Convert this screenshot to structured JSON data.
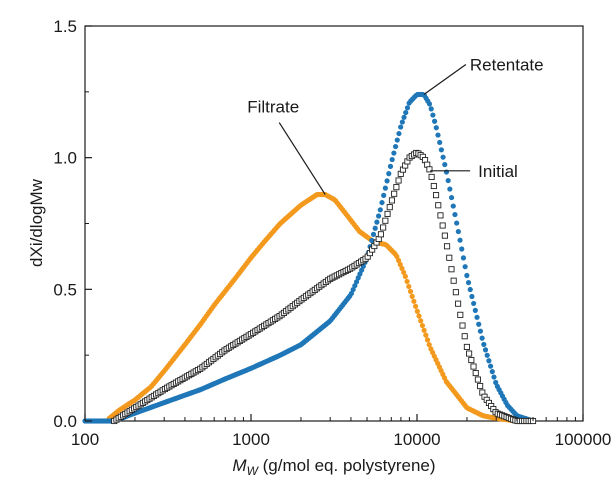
{
  "chart_data": {
    "type": "line",
    "title": "",
    "xlabel_main": "M",
    "xlabel_sub": "W",
    "xlabel_rest": " (g/mol eq. polystyrene)",
    "ylabel": "dXi/dlogMw",
    "xscale": "log",
    "xlim": [
      100,
      100000
    ],
    "ylim": [
      0,
      1.5
    ],
    "xticks": [
      100,
      1000,
      10000,
      100000
    ],
    "xtick_labels": [
      "100",
      "1000",
      "10000",
      "100000"
    ],
    "yticks": [
      0,
      0.5,
      1.0,
      1.5
    ],
    "ytick_labels": [
      "0.0",
      "0.5",
      "1.0",
      "1.5"
    ],
    "grid": false,
    "legend": "none",
    "series": [
      {
        "name": "Filtrate",
        "color": "#F39A1E",
        "marker": "filled-circle",
        "x": [
          140,
          160,
          200,
          250,
          300,
          400,
          500,
          600,
          800,
          1000,
          1200,
          1500,
          2000,
          2500,
          2800,
          3200,
          3800,
          4500,
          5500,
          6500,
          7500,
          8500,
          10000,
          12000,
          15000,
          20000,
          25000,
          30000,
          40000,
          50000
        ],
        "y": [
          0.01,
          0.04,
          0.08,
          0.13,
          0.19,
          0.29,
          0.37,
          0.44,
          0.54,
          0.62,
          0.68,
          0.75,
          0.82,
          0.86,
          0.86,
          0.84,
          0.78,
          0.72,
          0.68,
          0.67,
          0.63,
          0.55,
          0.42,
          0.28,
          0.15,
          0.05,
          0.02,
          0.01,
          0.0,
          0.0
        ]
      },
      {
        "name": "Retentate",
        "color": "#1F77B8",
        "marker": "filled-circle",
        "x": [
          100,
          150,
          200,
          300,
          500,
          700,
          1000,
          1500,
          2000,
          3000,
          4000,
          5000,
          6000,
          7000,
          8000,
          9000,
          10000,
          11000,
          12000,
          13000,
          15000,
          18000,
          20000,
          25000,
          30000,
          35000,
          40000,
          50000
        ],
        "y": [
          0.0,
          0.0,
          0.03,
          0.07,
          0.12,
          0.16,
          0.2,
          0.25,
          0.29,
          0.38,
          0.48,
          0.62,
          0.8,
          0.98,
          1.12,
          1.21,
          1.24,
          1.24,
          1.2,
          1.12,
          0.95,
          0.7,
          0.55,
          0.3,
          0.14,
          0.06,
          0.02,
          0.0
        ]
      },
      {
        "name": "Initial",
        "color": "#222222",
        "marker": "open-square",
        "x": [
          150,
          200,
          300,
          500,
          700,
          1000,
          1500,
          2000,
          3000,
          4000,
          5000,
          6000,
          7000,
          8000,
          9000,
          10000,
          11000,
          12000,
          13000,
          15000,
          18000,
          20000,
          25000,
          30000,
          40000,
          50000
        ],
        "y": [
          0.0,
          0.05,
          0.12,
          0.2,
          0.27,
          0.33,
          0.4,
          0.46,
          0.54,
          0.58,
          0.62,
          0.7,
          0.83,
          0.94,
          1.0,
          1.02,
          1.0,
          0.95,
          0.86,
          0.68,
          0.42,
          0.28,
          0.1,
          0.03,
          0.0,
          0.0
        ]
      }
    ],
    "annotations": [
      {
        "text": "Retentate",
        "series": 1,
        "x": 11000,
        "y": 1.24,
        "side": "right-top"
      },
      {
        "text": "Filtrate",
        "series": 0,
        "x": 2800,
        "y": 0.86,
        "side": "left-top"
      },
      {
        "text": "Initial",
        "series": 2,
        "x": 12000,
        "y": 0.79,
        "side": "right"
      }
    ]
  }
}
